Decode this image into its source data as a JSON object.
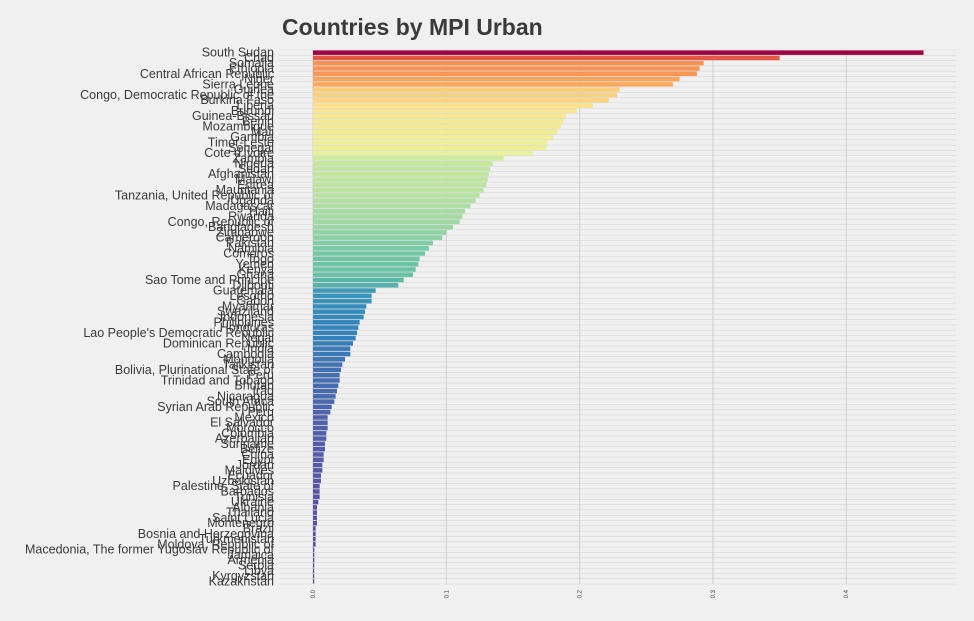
{
  "chart_data": {
    "type": "bar",
    "orientation": "horizontal",
    "title": "Countries by MPI Urban",
    "xlabel": "",
    "ylabel": "",
    "xlim": [
      0,
      0.46
    ],
    "xticks": [
      0.0,
      0.1,
      0.2,
      0.3,
      0.4
    ],
    "xtick_labels": [
      "0.0",
      "0.1",
      "0.2",
      "0.3",
      "0.4"
    ],
    "grid": true,
    "legend": "none",
    "categories": [
      "South Sudan",
      "Chad",
      "Somalia",
      "Ethiopia",
      "Central African Republic",
      "Niger",
      "Sierra Leone",
      "Guinea",
      "Congo, Democratic Republic of the",
      "Burkina Faso",
      "Liberia",
      "Burundi",
      "Guinea-Bissau",
      "Benin",
      "Mozambique",
      "Mali",
      "Gambia",
      "Timor-Leste",
      "Senegal",
      "Cote d'Ivoire",
      "Zambia",
      "Nigeria",
      "Sudan",
      "Afghanistan",
      "Malawi",
      "Eritrea",
      "Mauritania",
      "Tanzania, United Republic of",
      "Uganda",
      "Madagascar",
      "Haiti",
      "Rwanda",
      "Congo, Republic of",
      "Bangladesh",
      "Zimbabwe",
      "Cameroon",
      "Pakistan",
      "Namibia",
      "Comoros",
      "Togo",
      "Yemen",
      "Kenya",
      "Ghana",
      "Sao Tome and Principe",
      "Djibouti",
      "Guatemala",
      "Lesotho",
      "Gabon",
      "Myanmar",
      "Swaziland",
      "Indonesia",
      "Philippines",
      "Honduras",
      "Lao People's Democratic Republic",
      "Nepal",
      "Dominican Republic",
      "India",
      "Cambodia",
      "Mongolia",
      "Tajikistan",
      "Bolivia, Plurinational State of",
      "Peru",
      "Trinidad and Tobago",
      "Bhutan",
      "Iraq",
      "Nicaragua",
      "South Africa",
      "Syrian Arab Republic",
      "Peru ",
      "Mexico",
      "El Salvador",
      "Morocco",
      "Colombia",
      "Azerbaijan",
      "Suriname",
      "Belize",
      "China",
      "Egypt",
      "Jordan",
      "Maldives",
      "Ecuador",
      "Uzbekistan",
      "Palestine, State of",
      "Barbados",
      "Tunisia",
      "Ukraine",
      "Albania",
      "Thailand",
      "Saint Lucia",
      "Montenegro",
      "Brazil",
      "Bosnia and Herzegovina",
      "Turkmenistan",
      "Moldova, Republic of",
      "Macedonia, The former Yugoslav Republic of",
      "Jamaica",
      "Armenia",
      "Serbia",
      "Libya",
      "Kyrgyzstan",
      "Kazakhstan"
    ],
    "values": [
      0.458,
      0.35,
      0.293,
      0.29,
      0.288,
      0.275,
      0.27,
      0.23,
      0.228,
      0.222,
      0.21,
      0.198,
      0.19,
      0.188,
      0.186,
      0.183,
      0.18,
      0.176,
      0.175,
      0.165,
      0.143,
      0.135,
      0.133,
      0.132,
      0.131,
      0.13,
      0.128,
      0.125,
      0.122,
      0.118,
      0.114,
      0.112,
      0.11,
      0.105,
      0.1,
      0.097,
      0.09,
      0.087,
      0.084,
      0.08,
      0.079,
      0.077,
      0.075,
      0.068,
      0.064,
      0.047,
      0.044,
      0.044,
      0.04,
      0.039,
      0.038,
      0.035,
      0.034,
      0.033,
      0.032,
      0.03,
      0.028,
      0.028,
      0.024,
      0.022,
      0.021,
      0.02,
      0.02,
      0.019,
      0.018,
      0.017,
      0.016,
      0.014,
      0.013,
      0.011,
      0.011,
      0.011,
      0.01,
      0.01,
      0.009,
      0.009,
      0.008,
      0.008,
      0.007,
      0.007,
      0.006,
      0.006,
      0.005,
      0.005,
      0.005,
      0.004,
      0.003,
      0.003,
      0.003,
      0.003,
      0.002,
      0.002,
      0.002,
      0.002,
      0.001,
      0.001,
      0.001,
      0.0005,
      0.0005,
      0.0003,
      0.0002
    ],
    "color_scale": [
      "#9e0142",
      "#f46d43",
      "#fdae61",
      "#fee08b",
      "#e6f598",
      "#abdda4",
      "#66c2a5",
      "#3288bd",
      "#5e4fa2"
    ]
  }
}
